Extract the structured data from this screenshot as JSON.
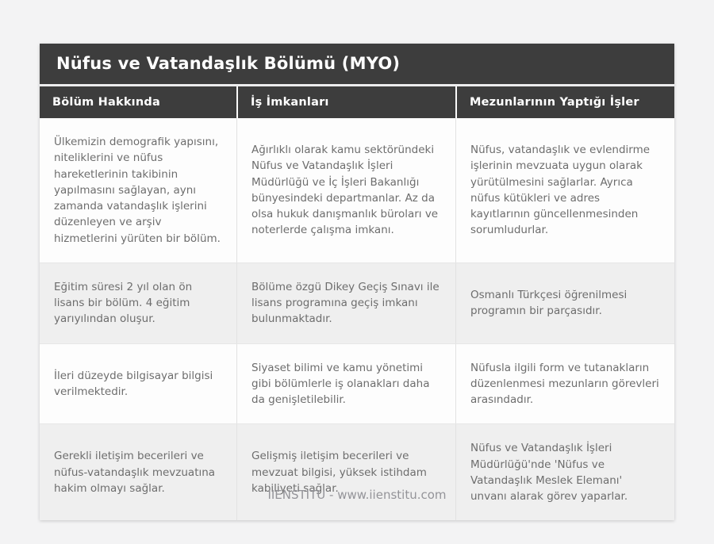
{
  "page": {
    "title": "Nüfus ve Vatandaşlık Bölümü (MYO)",
    "footer": "IIENSTITU - www.iienstitu.com"
  },
  "colors": {
    "header_bg": "#3d3d3d",
    "header_text": "#ffffff",
    "row_bg": "#fdfdfd",
    "row_alt_bg": "#efefef",
    "cell_text": "#6d6d6d",
    "page_bg": "#f3f3f4",
    "footer_text": "#949499"
  },
  "table": {
    "columns": [
      "Bölüm Hakkında",
      "İş İmkanları",
      "Mezunlarının Yaptığı İşler"
    ],
    "rows": [
      [
        "Ülkemizin demografik yapısını, niteliklerini ve nüfus hareketlerinin takibinin yapılmasını sağlayan, aynı zamanda vatandaşlık işlerini düzenleyen ve arşiv hizmetlerini yürüten bir bölüm.",
        "Ağırlıklı olarak kamu sektöründeki Nüfus ve Vatandaşlık İşleri Müdürlüğü ve İç İşleri Bakanlığı bünyesindeki departmanlar. Az da olsa hukuk danışmanlık büroları ve noterlerde çalışma imkanı.",
        "Nüfus, vatandaşlık ve evlendirme işlerinin mevzuata uygun olarak yürütülmesini sağlarlar. Ayrıca nüfus kütükleri ve adres kayıtlarının güncellenmesinden sorumludurlar."
      ],
      [
        "Eğitim süresi 2 yıl olan ön lisans bir bölüm. 4 eğitim yarıyılından oluşur.",
        "Bölüme özgü Dikey Geçiş Sınavı ile lisans programına geçiş imkanı bulunmaktadır.",
        "Osmanlı Türkçesi öğrenilmesi programın bir parçasıdır."
      ],
      [
        "İleri düzeyde bilgisayar bilgisi verilmektedir.",
        "Siyaset bilimi ve kamu yönetimi gibi bölümlerle iş olanakları daha da genişletilebilir.",
        "Nüfusla ilgili form ve tutanakların düzenlenmesi mezunların görevleri arasındadır."
      ],
      [
        "Gerekli iletişim becerileri ve nüfus-vatandaşlık mevzuatına hakim olmayı sağlar.",
        "Gelişmiş iletişim becerileri ve mevzuat bilgisi, yüksek istihdam kabiliyeti sağlar.",
        "Nüfus ve Vatandaşlık İşleri Müdürlüğü'nde 'Nüfus ve Vatandaşlık Meslek Elemanı' unvanı alarak görev yaparlar."
      ]
    ]
  }
}
